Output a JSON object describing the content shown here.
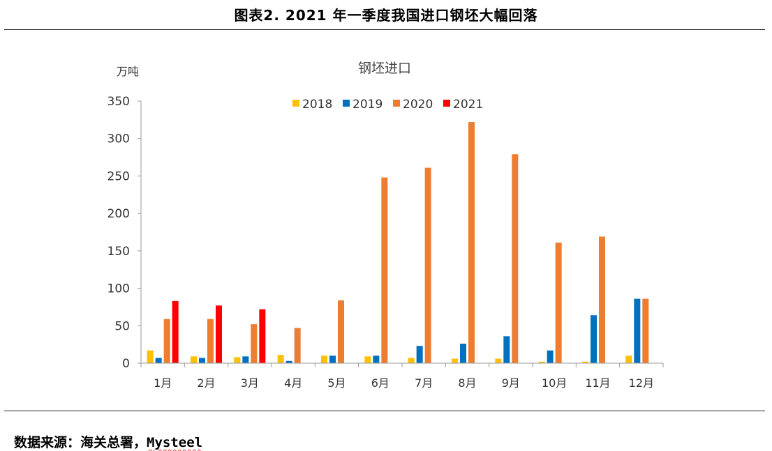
{
  "figure": {
    "title": "图表2.   2021 年一季度我国进口钢坯大幅回落",
    "source_prefix": "数据来源：海关总署，",
    "source_brand": "Mysteel"
  },
  "chart_data": {
    "type": "bar",
    "title": "钢坯进口",
    "ylabel": "万吨",
    "xlabel": "",
    "ylim": [
      0,
      350
    ],
    "yticks": [
      0,
      50,
      100,
      150,
      200,
      250,
      300,
      350
    ],
    "grid": false,
    "legend_position": "top-center",
    "categories": [
      "1月",
      "2月",
      "3月",
      "4月",
      "5月",
      "6月",
      "7月",
      "8月",
      "9月",
      "10月",
      "11月",
      "12月"
    ],
    "series": [
      {
        "name": "2018",
        "color": "#FFC000",
        "values": [
          17,
          9,
          8,
          11,
          10,
          9,
          7,
          6,
          6,
          2,
          2,
          10
        ]
      },
      {
        "name": "2019",
        "color": "#0070C0",
        "values": [
          7,
          7,
          9,
          3,
          10,
          10,
          23,
          26,
          36,
          17,
          64,
          86
        ]
      },
      {
        "name": "2020",
        "color": "#ED7D31",
        "values": [
          59,
          59,
          52,
          47,
          84,
          248,
          261,
          322,
          279,
          161,
          169,
          86
        ]
      },
      {
        "name": "2021",
        "color": "#FF0000",
        "values": [
          83,
          77,
          72,
          null,
          null,
          null,
          null,
          null,
          null,
          null,
          null,
          null
        ]
      }
    ]
  }
}
